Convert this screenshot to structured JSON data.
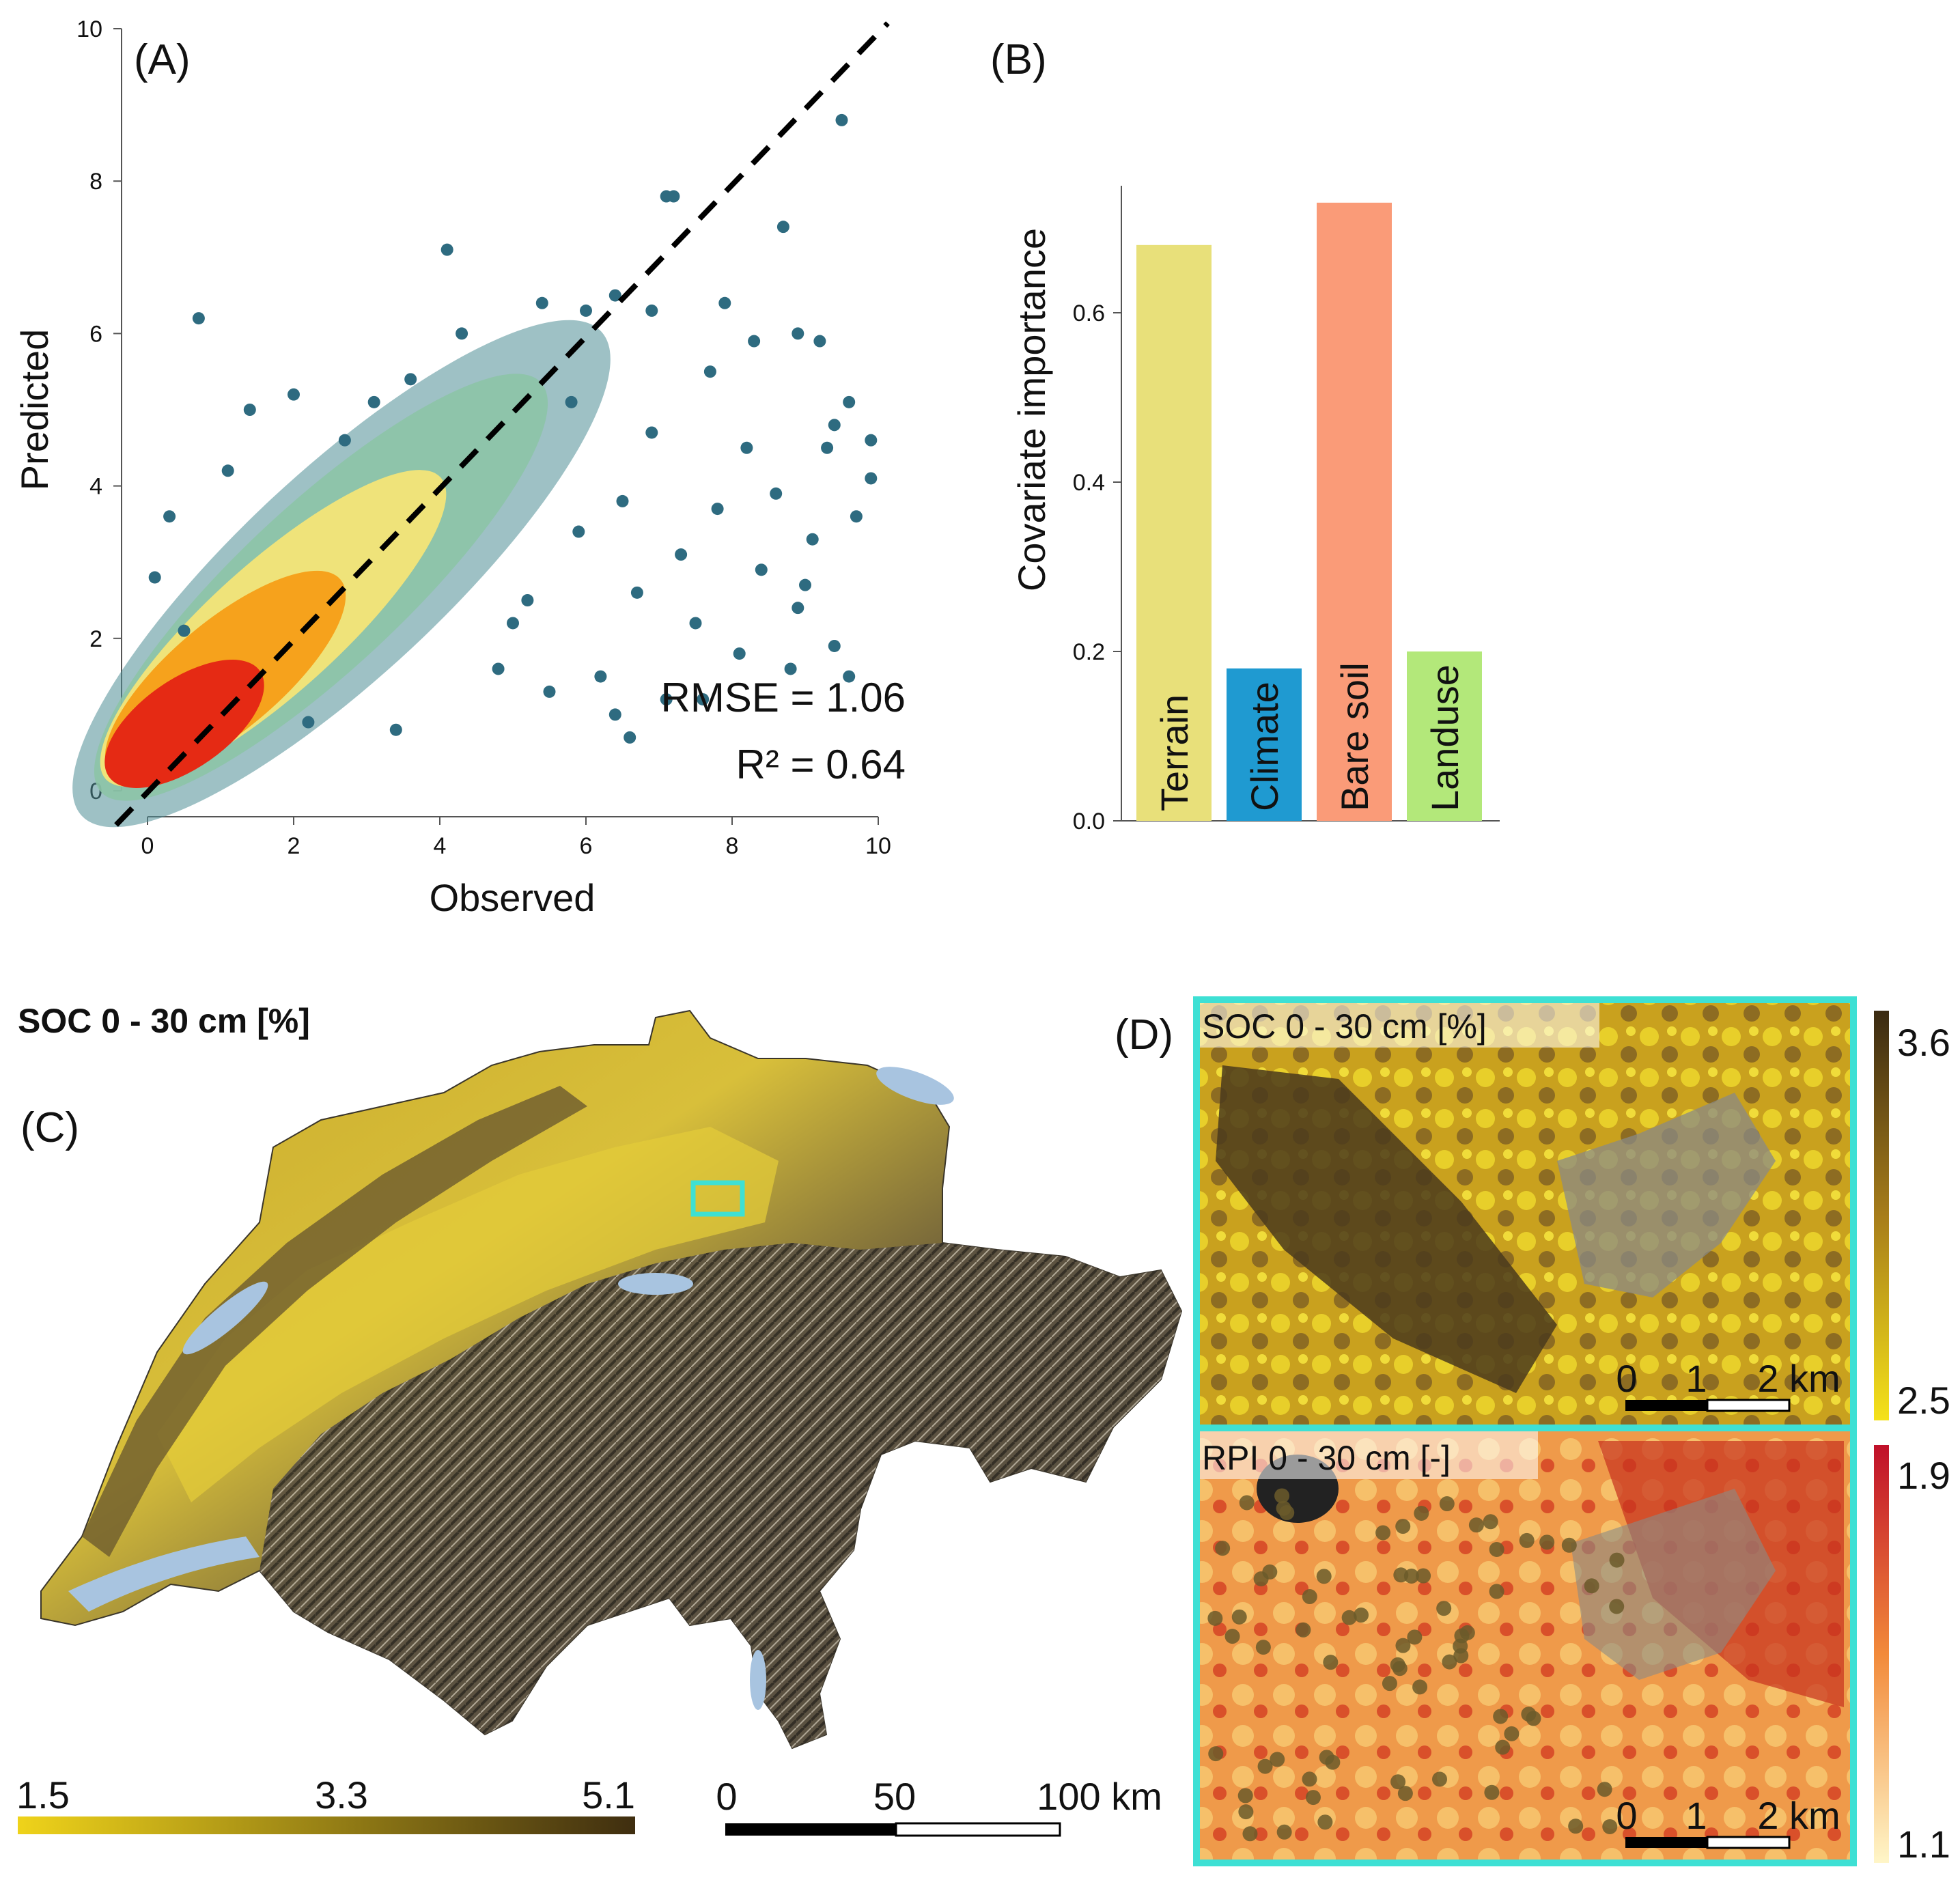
{
  "panels": {
    "a": "(A)",
    "b": "(B)",
    "c": "(C)",
    "d": "(D)"
  },
  "chart_data": [
    {
      "type": "scatter",
      "title": "",
      "xlabel": "Observed",
      "ylabel": "Predicted",
      "xlim": [
        0,
        10
      ],
      "ylim": [
        0,
        10
      ],
      "xticks": [
        "0",
        "2",
        "4",
        "6",
        "8",
        "10"
      ],
      "yticks": [
        "0",
        "2",
        "4",
        "6",
        "8",
        "10"
      ],
      "reference_line": "1:1 dashed",
      "annotations": {
        "rmse": "RMSE = 1.06",
        "r2": "R² = 0.64"
      },
      "colors": {
        "sparse": "#2e6b80",
        "mid": "#8cc4a6",
        "dense": "#e52a14"
      },
      "outliers": [
        [
          0.7,
          6.2
        ],
        [
          4.1,
          7.1
        ],
        [
          7.1,
          7.8
        ],
        [
          7.2,
          7.8
        ],
        [
          8.7,
          7.4
        ],
        [
          9.5,
          8.8
        ],
        [
          6.4,
          6.5
        ],
        [
          6.9,
          6.3
        ],
        [
          7.9,
          6.4
        ],
        [
          8.3,
          5.9
        ],
        [
          9.2,
          5.9
        ],
        [
          8.9,
          6.0
        ],
        [
          9.6,
          5.1
        ],
        [
          9.9,
          4.6
        ],
        [
          9.7,
          3.6
        ],
        [
          9.4,
          4.8
        ],
        [
          6.6,
          0.7
        ],
        [
          6.4,
          1.0
        ],
        [
          7.1,
          1.2
        ],
        [
          7.6,
          1.2
        ],
        [
          5.5,
          1.3
        ],
        [
          9.4,
          1.9
        ],
        [
          9.6,
          1.5
        ],
        [
          8.9,
          2.4
        ],
        [
          0.3,
          3.6
        ],
        [
          0.1,
          2.8
        ],
        [
          2.0,
          5.2
        ],
        [
          3.1,
          5.1
        ],
        [
          1.4,
          5.0
        ],
        [
          3.6,
          5.4
        ],
        [
          4.3,
          6.0
        ],
        [
          5.4,
          6.4
        ],
        [
          6.0,
          6.3
        ],
        [
          5.8,
          5.1
        ],
        [
          8.6,
          3.9
        ],
        [
          8.1,
          1.8
        ],
        [
          3.4,
          0.8
        ],
        [
          2.2,
          0.9
        ],
        [
          5.0,
          2.2
        ],
        [
          6.7,
          2.6
        ],
        [
          7.3,
          3.1
        ],
        [
          9.1,
          3.3
        ],
        [
          8.2,
          4.5
        ],
        [
          7.7,
          5.5
        ],
        [
          6.9,
          4.7
        ],
        [
          5.9,
          3.4
        ],
        [
          4.8,
          1.6
        ],
        [
          2.7,
          4.6
        ],
        [
          1.1,
          4.2
        ],
        [
          0.5,
          2.1
        ],
        [
          9.9,
          4.1
        ],
        [
          9.3,
          4.5
        ],
        [
          8.4,
          2.9
        ],
        [
          7.5,
          2.2
        ],
        [
          6.2,
          1.5
        ],
        [
          5.2,
          2.5
        ],
        [
          6.5,
          3.8
        ],
        [
          7.8,
          3.7
        ],
        [
          8.8,
          1.6
        ],
        [
          9.0,
          2.7
        ]
      ]
    },
    {
      "type": "bar",
      "ylabel": "Covariate importance",
      "ylim": [
        0,
        0.75
      ],
      "yticks": [
        "0.0",
        "0.2",
        "0.4",
        "0.6"
      ],
      "categories": [
        "Terrain",
        "Climate",
        "Bare soil",
        "Landuse"
      ],
      "values": [
        0.68,
        0.18,
        0.73,
        0.2
      ],
      "colors": [
        "#e8e07a",
        "#1f9ad1",
        "#fa9b78",
        "#b3e87a"
      ]
    }
  ],
  "map_c": {
    "title": "SOC 0 - 30 cm [%]",
    "colorbar_ticks": [
      "1.5",
      "3.3",
      "5.1"
    ],
    "colorbar_colors": [
      "#efd31a",
      "#3f2e10"
    ],
    "scale_ticks": [
      "0",
      "50",
      "100 km"
    ],
    "zoom_box_color": "#3ee0d4"
  },
  "inset_d": {
    "top": {
      "title": "SOC 0 - 30 cm [%]",
      "cbar_max": "3.6",
      "cbar_min": "2.5",
      "scale_ticks": [
        "0",
        "1",
        "2 km"
      ]
    },
    "bottom": {
      "title": "RPI 0 - 30 cm [-]",
      "cbar_max": "1.9",
      "cbar_min": "1.1",
      "scale_ticks": [
        "0",
        "1",
        "2 km"
      ]
    }
  }
}
